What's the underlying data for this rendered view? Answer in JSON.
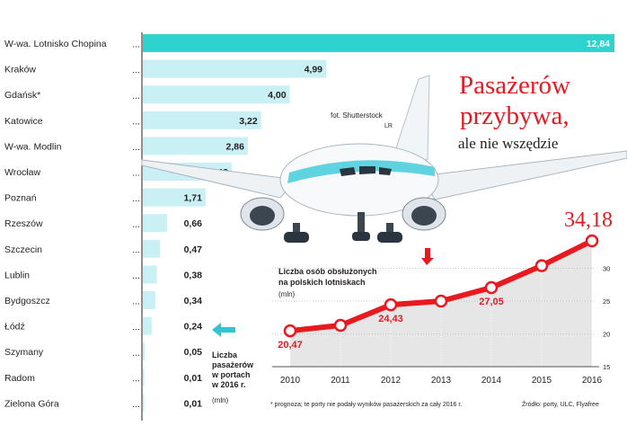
{
  "headline": {
    "title_line1": "Pasażerów",
    "title_line2": "przybywa,",
    "subtitle": "ale nie wszędzie"
  },
  "photo_credit": {
    "line1": "fot. Shutterstock",
    "line2": "LR"
  },
  "bar_legend": {
    "lines": [
      "Liczba",
      "pasażerów",
      "w portach",
      "w 2016 r."
    ],
    "unit": "(mln)"
  },
  "line_legend": {
    "lines": [
      "Liczba osób obsłużonych",
      "na polskich lotniskach"
    ],
    "unit": "(mln)"
  },
  "footnote": {
    "prognosis": "* prognoza; te porty nie podały wyników pasażerskich za cały 2016 r.",
    "source": "Źródło: porty, ULC, Flyafree"
  },
  "colors": {
    "bar_highlight": "#2ed3d0",
    "bar": "#c9f1f5",
    "line": "#e8191f",
    "headline": "#e8191f",
    "arrow_cyan": "#2ec6d3",
    "area": "#e6e6e6"
  },
  "chart_data": [
    {
      "type": "bar",
      "orientation": "horizontal",
      "categories": [
        "W-wa. Lotnisko Chopina",
        "Kraków",
        "Gdańsk*",
        "Katowice",
        "W-wa. Modlin",
        "Wrocław",
        "Poznań",
        "Rzeszów",
        "Szczecin",
        "Lublin",
        "Bydgoszcz",
        "Łódź",
        "Szymany",
        "Radom",
        "Zielona Góra"
      ],
      "values": [
        12.84,
        4.99,
        4.0,
        3.22,
        2.86,
        2.42,
        1.71,
        0.66,
        0.47,
        0.38,
        0.34,
        0.24,
        0.05,
        0.01,
        0.01
      ],
      "value_labels": [
        "12,84",
        "4,99",
        "4,00",
        "3,22",
        "2,86",
        "2,42",
        "1,71",
        "0,66",
        "0,47",
        "0,38",
        "0,34",
        "0,24",
        "0,05",
        "0,01",
        "0,01"
      ],
      "highlight_index": 0,
      "unit": "mln"
    },
    {
      "type": "line",
      "x": [
        "2010",
        "2011",
        "2012",
        "2013",
        "2014",
        "2015",
        "2016"
      ],
      "values": [
        20.47,
        21.3,
        24.43,
        25.0,
        27.05,
        30.4,
        34.18
      ],
      "value_labels": [
        "20,47",
        "",
        "24,43",
        "",
        "27,05",
        "",
        "34,18"
      ],
      "y_ticks": [
        "15",
        "20",
        "25",
        "30"
      ],
      "ylim": [
        15,
        35
      ],
      "unit": "mln"
    }
  ]
}
